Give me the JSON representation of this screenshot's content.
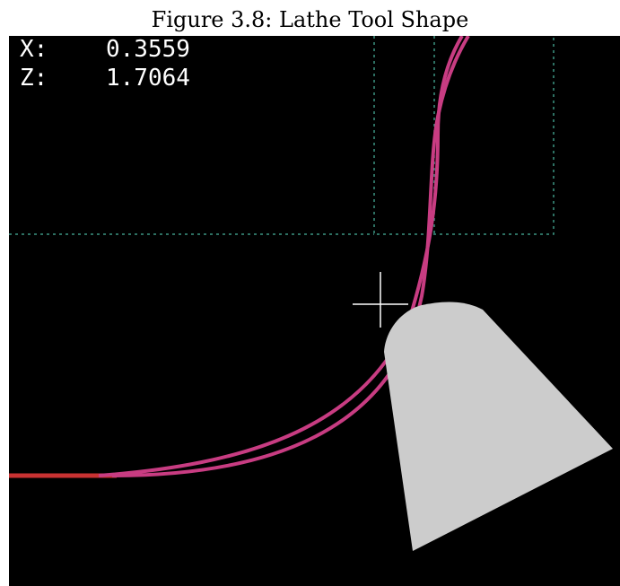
{
  "figure": {
    "caption": "Figure 3.8: Lathe Tool Shape"
  },
  "readout": {
    "x_label": "X:",
    "x_value": "0.3559",
    "z_label": "Z:",
    "z_value": "1.7064"
  },
  "colors": {
    "background": "#000000",
    "toolpath": "#c83c82",
    "feed_line": "#c83232",
    "limits": "#3c9682",
    "tool": "#cccccc",
    "cursor": "#ffffff",
    "text": "#ffffff"
  }
}
